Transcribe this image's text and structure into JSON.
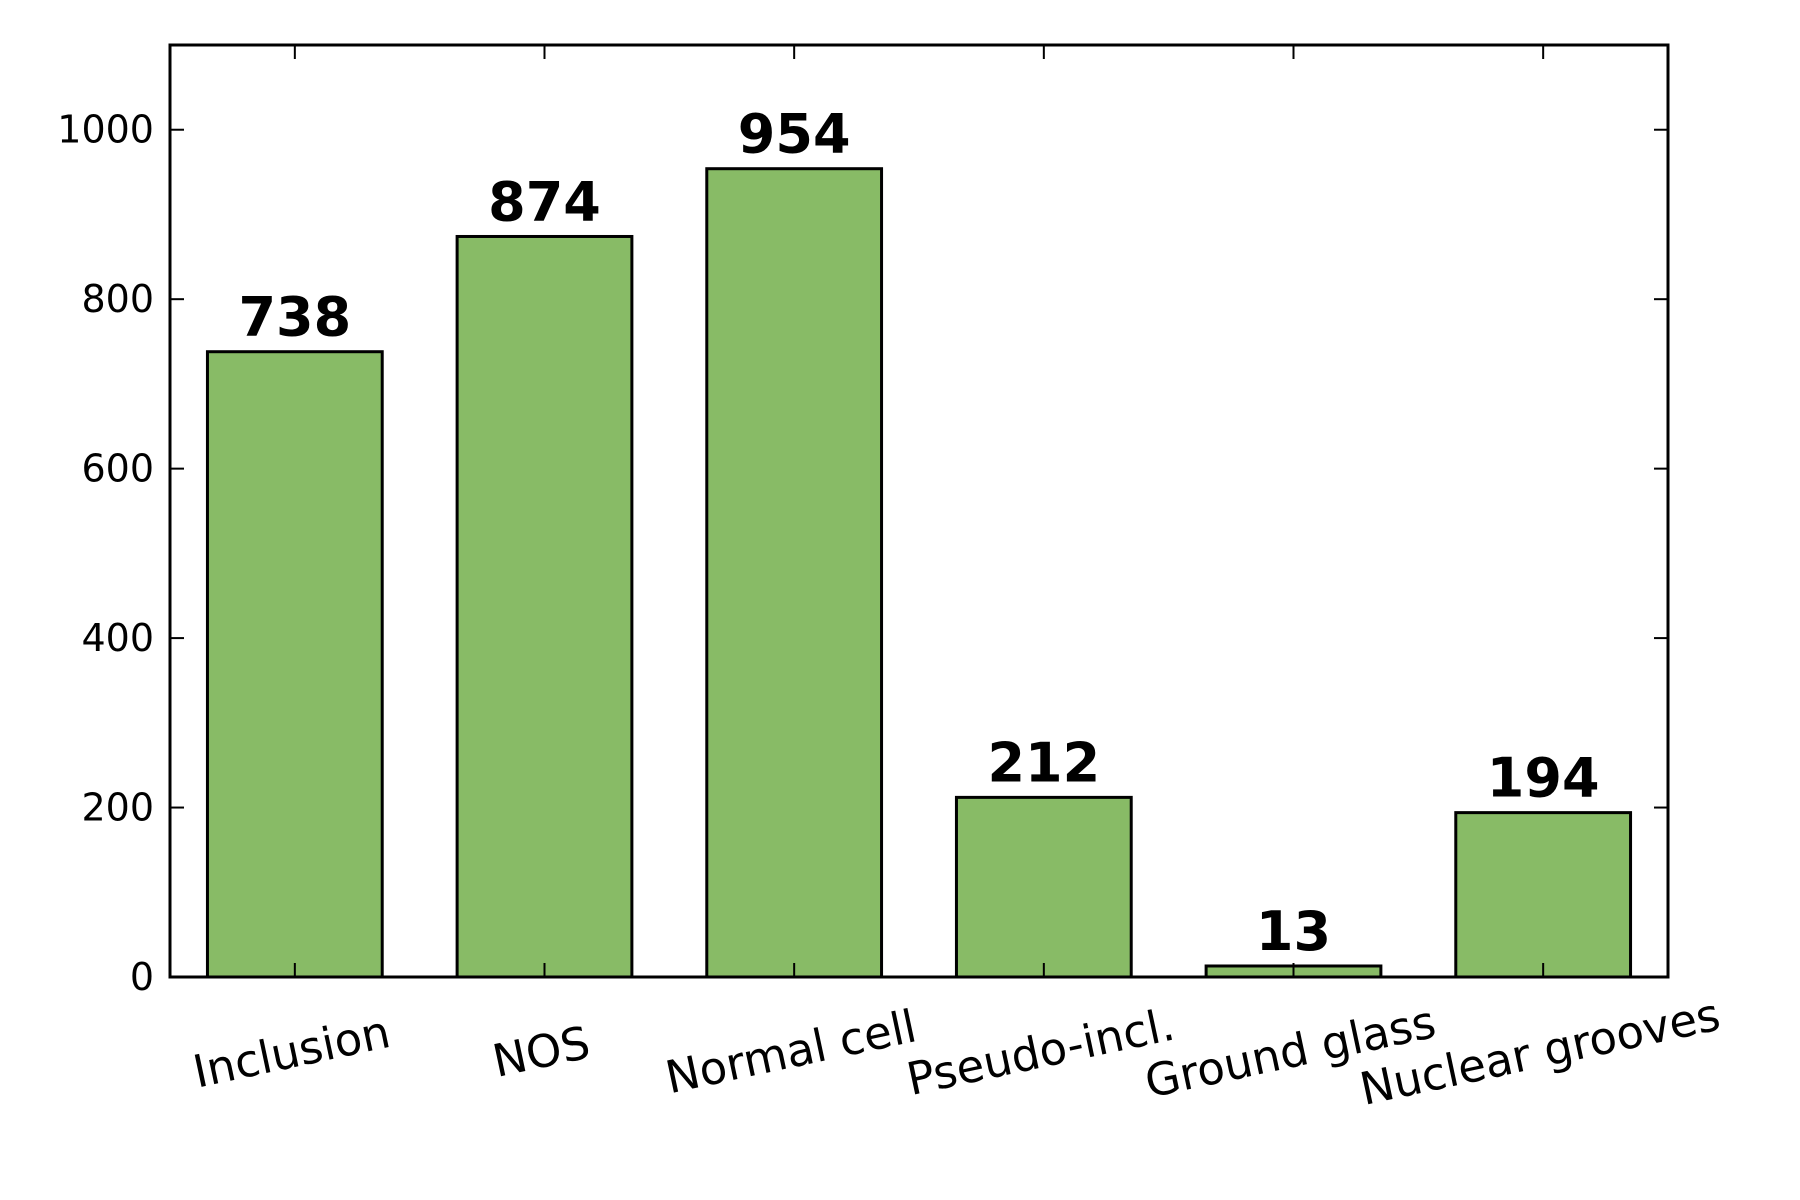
{
  "chart_data": {
    "type": "bar",
    "categories": [
      "Inclusion",
      "NOS",
      "Normal cell",
      "Pseudo-incl.",
      "Ground glass",
      "Nuclear grooves"
    ],
    "values": [
      738,
      874,
      954,
      212,
      13,
      194
    ],
    "data_labels": [
      "738",
      "874",
      "954",
      "212",
      "13",
      "194"
    ],
    "title": "",
    "xlabel": "",
    "ylabel": "",
    "ylim": [
      0,
      1100
    ],
    "yticks": [
      0,
      200,
      400,
      600,
      800,
      1000
    ],
    "ytick_labels": [
      "0",
      "200",
      "400",
      "600",
      "800",
      "1000"
    ],
    "grid": false,
    "legend": "none",
    "bar_color": "#88bb66",
    "edge_color": "#000000"
  }
}
